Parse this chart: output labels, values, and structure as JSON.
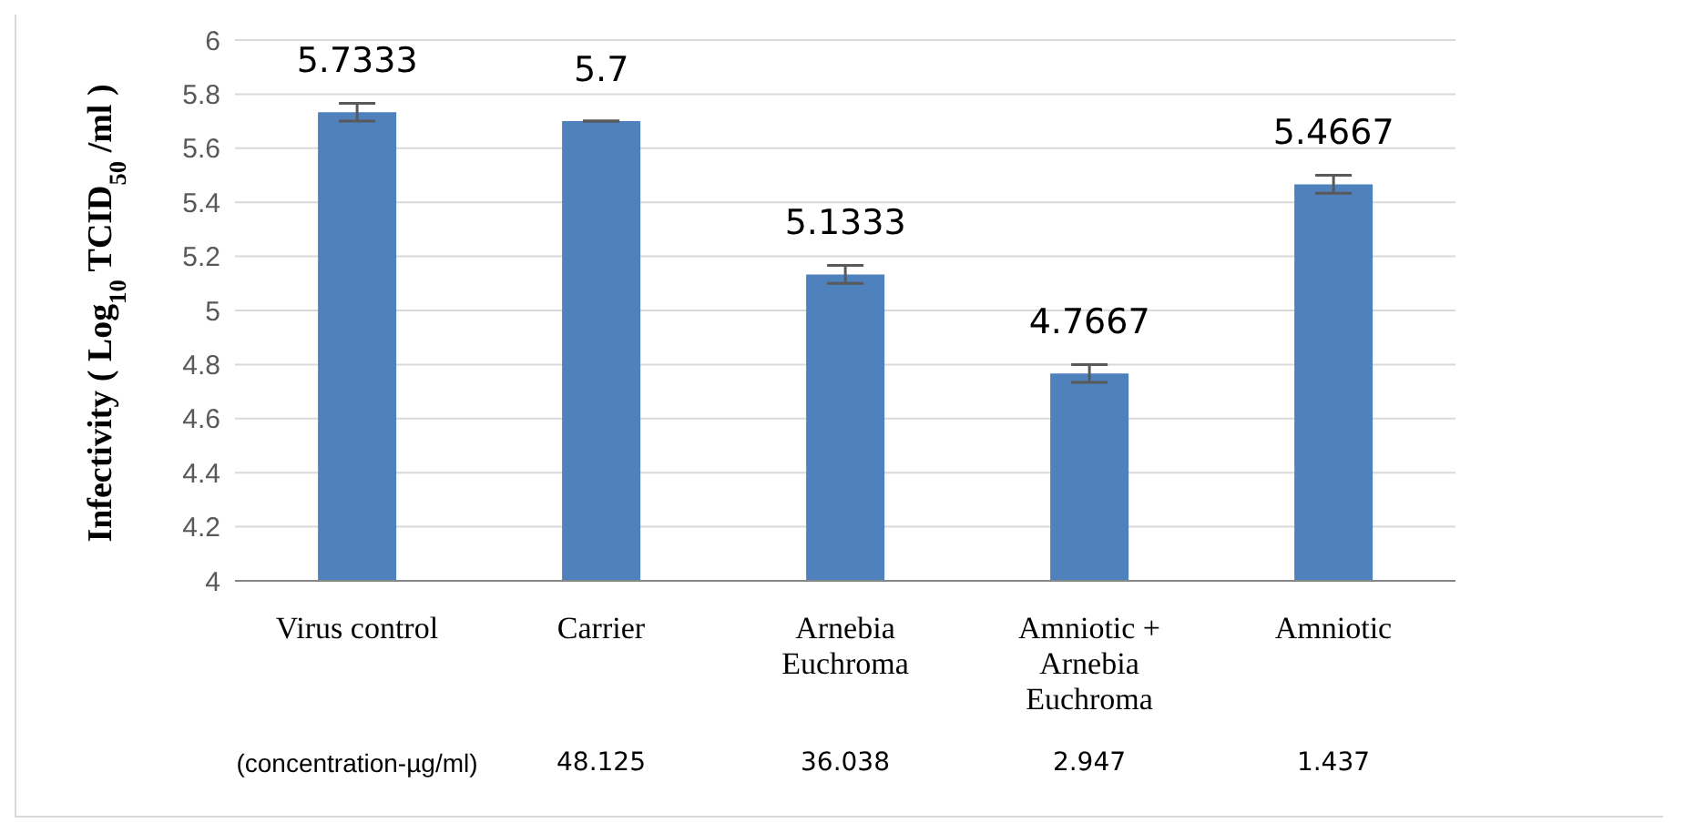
{
  "chart_data": {
    "type": "bar",
    "ylabel": "Infectivity ( Log$_{10}$ TCID$_{50}$ /ml )",
    "categories": [
      "Virus control",
      "Carrier",
      "Arnebia Euchroma",
      "Amniotic + Arnebia Euchroma",
      "Amniotic"
    ],
    "values": [
      5.7333,
      5.7,
      5.1333,
      4.7667,
      5.4667
    ],
    "errors": [
      0.033,
      0,
      0.033,
      0.033,
      0.033
    ],
    "color": "#4f81bd",
    "data_labels": true,
    "ylim": [
      4,
      6
    ],
    "yticks": [
      4,
      4.2,
      4.4,
      4.6,
      4.8,
      5,
      5.2,
      5.4,
      5.6,
      5.8,
      6
    ],
    "grid": "y",
    "annotations": [
      "(concentration-µg/ml)",
      "48.125",
      "36.038",
      "2.947",
      "1.437"
    ]
  }
}
